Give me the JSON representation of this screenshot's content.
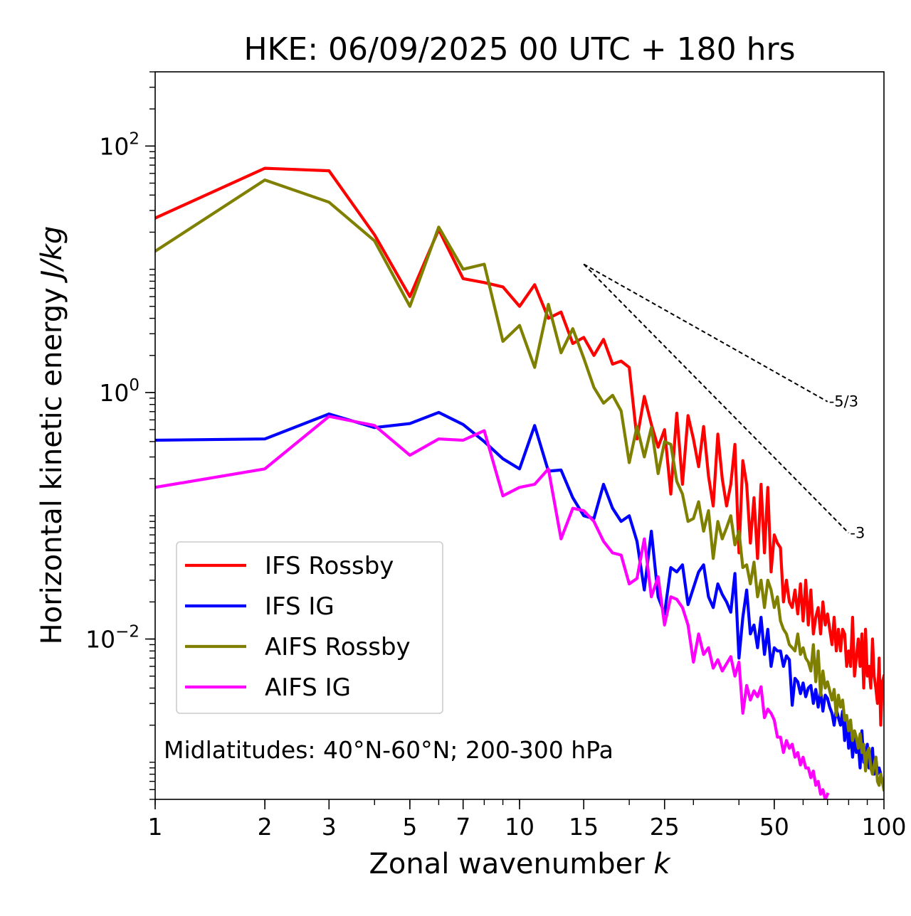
{
  "chart_data": {
    "type": "line",
    "title": "HKE: 06/09/2025 00 UTC + 180 hrs",
    "xlabel_text": "Zonal wavenumber ",
    "xlabel_var": "k",
    "ylabel_text": "Horizontal kinetic energy ",
    "ylabel_units": "J/kg",
    "xscale": "log",
    "yscale": "log",
    "xlim": [
      1,
      100
    ],
    "ylim": [
      0.0005,
      400
    ],
    "x_ticks": [
      {
        "value": 1,
        "label": "1"
      },
      {
        "value": 2,
        "label": "2"
      },
      {
        "value": 3,
        "label": "3"
      },
      {
        "value": 5,
        "label": "5"
      },
      {
        "value": 7,
        "label": "7"
      },
      {
        "value": 10,
        "label": "10"
      },
      {
        "value": 15,
        "label": "15"
      },
      {
        "value": 25,
        "label": "25"
      },
      {
        "value": 50,
        "label": "50"
      },
      {
        "value": 100,
        "label": "100"
      }
    ],
    "y_ticks": [
      {
        "value": 100,
        "base": "10",
        "exp": "2"
      },
      {
        "value": 1,
        "base": "10",
        "exp": "0"
      },
      {
        "value": 0.01,
        "base": "10",
        "exp": "−2"
      }
    ],
    "annotation": "Midlatitudes: 40°N-60°N; 200-300 hPa",
    "legend_position": "lower-left",
    "reference_lines": [
      {
        "label": "-5/3",
        "slope": -1.6667,
        "x0": 15,
        "y0": 11.0,
        "x1": 70
      },
      {
        "label": "-3",
        "slope": -3,
        "x0": 15,
        "y0": 11.0,
        "x1": 80
      }
    ],
    "series": [
      {
        "name": "IFS Rossby",
        "color": "#ff0000",
        "x": [
          1,
          2,
          3,
          4,
          5,
          6,
          7,
          8,
          9,
          10,
          11,
          12,
          13,
          14,
          15,
          16,
          17,
          18,
          19,
          20,
          21,
          22,
          23,
          24,
          25,
          26,
          27,
          28,
          29,
          30,
          31,
          32,
          33,
          34,
          35,
          36,
          37,
          38,
          39,
          40,
          41,
          42,
          43,
          44,
          45,
          46,
          47,
          48,
          49,
          50,
          51,
          52,
          53,
          54,
          55,
          56,
          57,
          58,
          59,
          60,
          61,
          62,
          63,
          64,
          65,
          66,
          67,
          68,
          69,
          70,
          71,
          72,
          73,
          74,
          75,
          76,
          77,
          78,
          79,
          80,
          81,
          82,
          83,
          84,
          85,
          86,
          87,
          88,
          89,
          90,
          91,
          92,
          93,
          94,
          95,
          96,
          97,
          98,
          99,
          100
        ],
        "y": [
          26,
          66,
          63,
          19,
          6.0,
          21,
          8.4,
          7.8,
          7.2,
          5.0,
          7.5,
          4.0,
          4.5,
          2.5,
          2.8,
          2.0,
          2.7,
          1.7,
          1.8,
          1.6,
          0.42,
          0.93,
          0.55,
          0.36,
          0.5,
          0.15,
          0.68,
          0.18,
          0.65,
          0.42,
          0.25,
          0.53,
          0.21,
          0.12,
          0.46,
          0.2,
          0.12,
          0.18,
          0.38,
          0.05,
          0.28,
          0.18,
          0.06,
          0.14,
          0.045,
          0.18,
          0.05,
          0.17,
          0.035,
          0.07,
          0.06,
          0.055,
          0.02,
          0.03,
          0.02,
          0.018,
          0.025,
          0.016,
          0.028,
          0.014,
          0.03,
          0.013,
          0.025,
          0.011,
          0.015,
          0.018,
          0.011,
          0.02,
          0.013,
          0.016,
          0.012,
          0.009,
          0.015,
          0.008,
          0.012,
          0.008,
          0.012,
          0.011,
          0.006,
          0.008,
          0.006,
          0.015,
          0.005,
          0.007,
          0.01,
          0.006,
          0.011,
          0.004,
          0.012,
          0.005,
          0.006,
          0.004,
          0.01,
          0.005,
          0.004,
          0.003,
          0.007,
          0.002,
          0.0045,
          0.005
        ]
      },
      {
        "name": "IFS IG",
        "color": "#0000ff",
        "x": [
          1,
          2,
          3,
          4,
          5,
          6,
          7,
          8,
          9,
          10,
          11,
          12,
          13,
          14,
          15,
          16,
          17,
          18,
          19,
          20,
          21,
          22,
          23,
          24,
          25,
          26,
          27,
          28,
          29,
          30,
          31,
          32,
          33,
          34,
          35,
          36,
          37,
          38,
          39,
          40,
          41,
          42,
          43,
          44,
          45,
          46,
          47,
          48,
          49,
          50,
          51,
          52,
          53,
          54,
          55,
          56,
          57,
          58,
          59,
          60,
          61,
          62,
          63,
          64,
          65,
          66,
          67,
          68,
          69,
          70,
          71,
          72,
          73,
          74,
          75,
          76,
          77,
          78,
          79,
          80,
          81,
          82,
          83,
          84,
          85,
          86,
          87,
          88,
          89,
          90,
          91,
          92,
          93,
          94,
          95,
          96,
          97,
          98,
          99,
          100
        ],
        "y": [
          0.41,
          0.42,
          0.67,
          0.52,
          0.56,
          0.69,
          0.55,
          0.4,
          0.29,
          0.24,
          0.54,
          0.23,
          0.235,
          0.14,
          0.1,
          0.095,
          0.18,
          0.115,
          0.09,
          0.1,
          0.062,
          0.025,
          0.075,
          0.022,
          0.016,
          0.038,
          0.035,
          0.04,
          0.019,
          0.026,
          0.035,
          0.04,
          0.022,
          0.018,
          0.028,
          0.023,
          0.02,
          0.0165,
          0.034,
          0.007,
          0.015,
          0.025,
          0.011,
          0.013,
          0.0085,
          0.015,
          0.0075,
          0.012,
          0.006,
          0.0085,
          0.008,
          0.008,
          0.006,
          0.0073,
          0.0068,
          0.0029,
          0.0048,
          0.0045,
          0.0036,
          0.0044,
          0.0034,
          0.004,
          0.0042,
          0.003,
          0.0039,
          0.0028,
          0.0038,
          0.0026,
          0.0035,
          0.0033,
          0.0028,
          0.0025,
          0.002,
          0.0027,
          0.0023,
          0.002,
          0.0026,
          0.0015,
          0.0022,
          0.0013,
          0.0018,
          0.0011,
          0.0016,
          0.0012,
          0.0014,
          0.0009,
          0.0018,
          0.001,
          0.0011,
          0.0014,
          0.0009,
          0.0009,
          0.0013,
          0.0008,
          0.0011,
          0.0008,
          0.0009,
          0.0008,
          0.0007,
          0.0006
        ]
      },
      {
        "name": "AIFS Rossby",
        "color": "#808000",
        "x": [
          1,
          2,
          3,
          4,
          5,
          6,
          7,
          8,
          9,
          10,
          11,
          12,
          13,
          14,
          15,
          16,
          17,
          18,
          19,
          20,
          21,
          22,
          23,
          24,
          25,
          26,
          27,
          28,
          29,
          30,
          31,
          32,
          33,
          34,
          35,
          36,
          37,
          38,
          39,
          40,
          41,
          42,
          43,
          44,
          45,
          46,
          47,
          48,
          49,
          50,
          51,
          52,
          53,
          54,
          55,
          56,
          57,
          58,
          59,
          60,
          61,
          62,
          63,
          64,
          65,
          66,
          67,
          68,
          69,
          70,
          71,
          72,
          73,
          74,
          75,
          76,
          77,
          78,
          79,
          80,
          81,
          82,
          83,
          84,
          85,
          86,
          87,
          88,
          89,
          90,
          91,
          92,
          93,
          94,
          95,
          96,
          97,
          98,
          99,
          100
        ],
        "y": [
          14,
          53,
          35,
          17,
          5.0,
          22,
          10,
          11,
          2.6,
          3.5,
          1.6,
          5.2,
          2.1,
          3.3,
          1.9,
          1.1,
          0.82,
          0.95,
          0.71,
          0.27,
          0.53,
          0.3,
          0.52,
          0.22,
          0.4,
          0.38,
          0.19,
          0.15,
          0.09,
          0.095,
          0.13,
          0.075,
          0.11,
          0.045,
          0.09,
          0.065,
          0.08,
          0.1,
          0.058,
          0.075,
          0.038,
          0.04,
          0.028,
          0.042,
          0.022,
          0.03,
          0.018,
          0.03,
          0.025,
          0.018,
          0.022,
          0.014,
          0.012,
          0.011,
          0.009,
          0.0085,
          0.008,
          0.011,
          0.0075,
          0.0085,
          0.007,
          0.0065,
          0.0055,
          0.009,
          0.0045,
          0.008,
          0.0035,
          0.0055,
          0.004,
          0.0045,
          0.0038,
          0.0032,
          0.0039,
          0.0024,
          0.0035,
          0.0028,
          0.0032,
          0.0022,
          0.0024,
          0.0018,
          0.0022,
          0.0015,
          0.0018,
          0.0016,
          0.0013,
          0.0017,
          0.0012,
          0.0014,
          0.00085,
          0.0012,
          0.0013,
          0.0009,
          0.0008,
          0.00095,
          0.0011,
          0.0007,
          0.00065,
          0.0008,
          0.0007,
          0.0006
        ]
      },
      {
        "name": "AIFS IG",
        "color": "#ff00ff",
        "x": [
          1,
          2,
          3,
          4,
          5,
          6,
          7,
          8,
          9,
          10,
          11,
          12,
          13,
          14,
          15,
          16,
          17,
          18,
          19,
          20,
          21,
          22,
          23,
          24,
          25,
          26,
          27,
          28,
          29,
          30,
          31,
          32,
          33,
          34,
          35,
          36,
          37,
          38,
          39,
          40,
          41,
          42,
          43,
          44,
          45,
          46,
          47,
          48,
          49,
          50,
          51,
          52,
          53,
          54,
          55,
          56,
          57,
          58,
          59,
          60,
          61,
          62,
          63,
          64,
          65,
          66,
          67,
          68,
          69,
          70
        ],
        "y": [
          0.17,
          0.24,
          0.64,
          0.54,
          0.31,
          0.42,
          0.41,
          0.49,
          0.145,
          0.17,
          0.18,
          0.24,
          0.065,
          0.115,
          0.11,
          0.09,
          0.062,
          0.05,
          0.048,
          0.028,
          0.031,
          0.065,
          0.022,
          0.032,
          0.013,
          0.022,
          0.021,
          0.018,
          0.013,
          0.0065,
          0.011,
          0.0075,
          0.0085,
          0.0058,
          0.0068,
          0.0055,
          0.0063,
          0.0072,
          0.005,
          0.0065,
          0.0025,
          0.0042,
          0.0032,
          0.0038,
          0.0034,
          0.0041,
          0.0023,
          0.0027,
          0.0025,
          0.0022,
          0.0016,
          0.0016,
          0.0012,
          0.0015,
          0.0013,
          0.0014,
          0.0011,
          0.0012,
          0.00095,
          0.0011,
          0.0009,
          0.0009,
          0.00075,
          0.00085,
          0.00065,
          0.0007,
          0.00055,
          0.0006,
          0.0005,
          0.00055
        ]
      }
    ]
  }
}
